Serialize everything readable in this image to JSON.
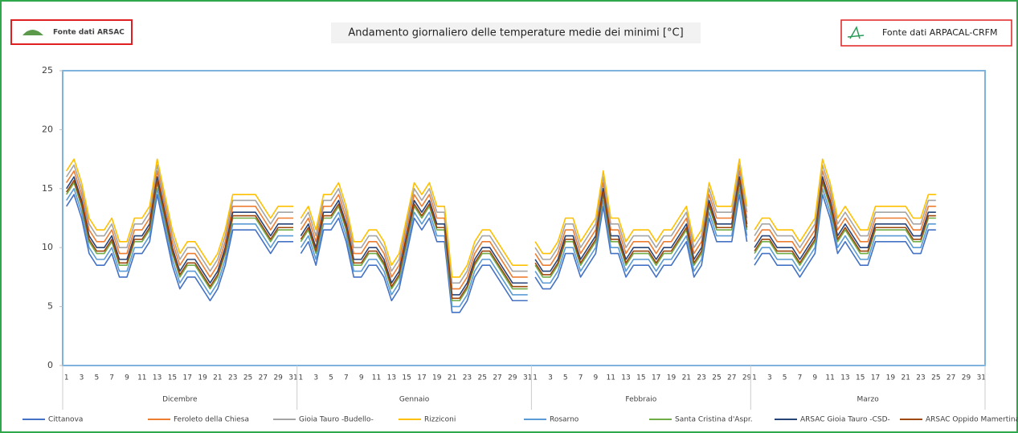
{
  "chart_data": {
    "type": "line",
    "title": "Andamento giornaliero delle temperature medie dei minimi  [°C]",
    "annotations": [
      "Fonte dati ARSAC",
      "Fonte dati ARPACAL-CRFM"
    ],
    "groups": [
      {
        "name": "Dicembre",
        "categories": [
          "1",
          null,
          "3",
          null,
          "5",
          null,
          "7",
          null,
          "9",
          null,
          "11",
          null,
          "13",
          null,
          "15",
          null,
          "17",
          null,
          "19",
          null,
          "21",
          null,
          "23",
          null,
          "25",
          null,
          "27",
          null,
          "29",
          null,
          "31"
        ]
      },
      {
        "name": "Gennaio",
        "categories": [
          "1",
          null,
          "3",
          null,
          "5",
          null,
          "7",
          null,
          "9",
          null,
          "11",
          null,
          "13",
          null,
          "15",
          null,
          "17",
          null,
          "19",
          null,
          "21",
          null,
          "23",
          null,
          "25",
          null,
          "27",
          null,
          "29",
          null,
          "31"
        ]
      },
      {
        "name": "Febbraio",
        "categories": [
          "1",
          null,
          "3",
          null,
          "5",
          null,
          "7",
          null,
          "9",
          null,
          "11",
          null,
          "13",
          null,
          "15",
          null,
          "17",
          null,
          "19",
          null,
          "21",
          null,
          "23",
          null,
          "25",
          null,
          "27",
          null,
          "29"
        ]
      },
      {
        "name": "Marzo",
        "categories": [
          "1",
          null,
          "3",
          null,
          "5",
          null,
          "7",
          null,
          "9",
          null,
          "11",
          null,
          "13",
          null,
          "15",
          null,
          "17",
          null,
          "19",
          null,
          "21",
          null,
          "23",
          null,
          "25",
          null,
          "27",
          null,
          "29",
          null,
          "31"
        ]
      }
    ],
    "ylim": [
      0,
      25
    ],
    "yticks": [
      0,
      5,
      10,
      15,
      20,
      25
    ],
    "grid": false,
    "legend": "bottom",
    "series": [
      {
        "name": "Cittanova",
        "color": "#4472c4",
        "values": [
          13.5,
          14.5,
          12.5,
          9.5,
          8.5,
          8.5,
          9.5,
          7.5,
          7.5,
          9.5,
          9.5,
          10.5,
          14.5,
          11.5,
          8.5,
          6.5,
          7.5,
          7.5,
          6.5,
          5.5,
          6.5,
          8.5,
          11.5,
          11.5,
          11.5,
          11.5,
          10.5,
          9.5,
          10.5,
          10.5,
          10.5,
          9.5,
          10.5,
          8.5,
          11.5,
          11.5,
          12.5,
          10.5,
          7.5,
          7.5,
          8.5,
          8.5,
          7.5,
          5.5,
          6.5,
          9.5,
          12.5,
          11.5,
          12.5,
          10.5,
          10.5,
          4.5,
          4.5,
          5.5,
          7.5,
          8.5,
          8.5,
          7.5,
          6.5,
          5.5,
          5.5,
          5.5,
          7.5,
          6.5,
          6.5,
          7.5,
          9.5,
          9.5,
          7.5,
          8.5,
          9.5,
          13.5,
          9.5,
          9.5,
          7.5,
          8.5,
          8.5,
          8.5,
          7.5,
          8.5,
          8.5,
          9.5,
          10.5,
          7.5,
          8.5,
          12.5,
          10.5,
          10.5,
          10.5,
          14.5,
          10.5,
          8.5,
          9.5,
          9.5,
          8.5,
          8.5,
          8.5,
          7.5,
          8.5,
          9.5,
          14.5,
          12.5,
          9.5,
          10.5,
          9.5,
          8.5,
          8.5,
          10.5,
          10.5,
          10.5,
          10.5,
          10.5,
          9.5,
          9.5,
          11.5,
          11.5,
          null,
          null,
          null,
          null,
          null,
          null
        ]
      },
      {
        "name": "Feroleto della Chiesa",
        "color": "#ed7d31",
        "values": [
          15.5,
          16.5,
          14.5,
          11.5,
          10.5,
          10.5,
          11.5,
          9.5,
          9.5,
          11.5,
          11.5,
          12.5,
          16.5,
          13.5,
          10.5,
          8.5,
          9.5,
          9.5,
          8.5,
          7.5,
          8.5,
          10.5,
          13.5,
          13.5,
          13.5,
          13.5,
          12.5,
          11.5,
          12.5,
          12.5,
          12.5,
          11.5,
          12.5,
          10.5,
          13.5,
          13.5,
          14.5,
          12.5,
          9.5,
          9.5,
          10.5,
          10.5,
          9.5,
          7.5,
          8.5,
          11.5,
          14.5,
          13.5,
          14.5,
          12.5,
          12.5,
          6.5,
          6.5,
          7.5,
          9.5,
          10.5,
          10.5,
          9.5,
          8.5,
          7.5,
          7.5,
          7.5,
          9.5,
          8.5,
          8.5,
          9.5,
          11.5,
          11.5,
          9.5,
          10.5,
          11.5,
          15.5,
          11.5,
          11.5,
          9.5,
          10.5,
          10.5,
          10.5,
          9.5,
          10.5,
          10.5,
          11.5,
          12.5,
          9.5,
          10.5,
          14.5,
          12.5,
          12.5,
          12.5,
          16.5,
          12.5,
          10.5,
          11.5,
          11.5,
          10.5,
          10.5,
          10.5,
          9.5,
          10.5,
          11.5,
          16.5,
          14.5,
          11.5,
          12.5,
          11.5,
          10.5,
          10.5,
          12.5,
          12.5,
          12.5,
          12.5,
          12.5,
          11.5,
          11.5,
          13.5,
          13.5,
          null,
          null,
          null,
          null,
          null,
          null
        ]
      },
      {
        "name": "Gioia Tauro -Budello-",
        "color": "#a5a5a5",
        "values": [
          16,
          17,
          15,
          12,
          11,
          11,
          12,
          10,
          10,
          12,
          12,
          13,
          17,
          14,
          11,
          9,
          10,
          10,
          9,
          8,
          9,
          11,
          14,
          14,
          14,
          14,
          13,
          12,
          13,
          13,
          13,
          12,
          13,
          11,
          14,
          14,
          15,
          13,
          10,
          10,
          11,
          11,
          10,
          8,
          9,
          12,
          15,
          14,
          15,
          13,
          13,
          7,
          7,
          8,
          10,
          11,
          11,
          10,
          9,
          8,
          8,
          8,
          10,
          9,
          9,
          10,
          12,
          12,
          10,
          11,
          12,
          16,
          12,
          12,
          10,
          11,
          11,
          11,
          10,
          11,
          11,
          12,
          13,
          10,
          11,
          15,
          13,
          13,
          13,
          17,
          13,
          11,
          12,
          12,
          11,
          11,
          11,
          10,
          11,
          12,
          17,
          15,
          12,
          13,
          12,
          11,
          11,
          13,
          13,
          13,
          13,
          13,
          12,
          12,
          14,
          14,
          null,
          null,
          null,
          null,
          null,
          null
        ]
      },
      {
        "name": "Rizziconi",
        "color": "#ffc000",
        "values": [
          16.5,
          17.5,
          15.5,
          12.5,
          11.5,
          11.5,
          12.5,
          10.5,
          10.5,
          12.5,
          12.5,
          13.5,
          17.5,
          14.5,
          11.5,
          9.5,
          10.5,
          10.5,
          9.5,
          8.5,
          9.5,
          11.5,
          14.5,
          14.5,
          14.5,
          14.5,
          13.5,
          12.5,
          13.5,
          13.5,
          13.5,
          12.5,
          13.5,
          11.5,
          14.5,
          14.5,
          15.5,
          13.5,
          10.5,
          10.5,
          11.5,
          11.5,
          10.5,
          8.5,
          9.5,
          12.5,
          15.5,
          14.5,
          15.5,
          13.5,
          13.5,
          7.5,
          7.5,
          8.5,
          10.5,
          11.5,
          11.5,
          10.5,
          9.5,
          8.5,
          8.5,
          8.5,
          10.5,
          9.5,
          9.5,
          10.5,
          12.5,
          12.5,
          10.5,
          11.5,
          12.5,
          16.5,
          12.5,
          12.5,
          10.5,
          11.5,
          11.5,
          11.5,
          10.5,
          11.5,
          11.5,
          12.5,
          13.5,
          10.5,
          11.5,
          15.5,
          13.5,
          13.5,
          13.5,
          17.5,
          13.5,
          11.5,
          12.5,
          12.5,
          11.5,
          11.5,
          11.5,
          10.5,
          11.5,
          12.5,
          17.5,
          15.5,
          12.5,
          13.5,
          12.5,
          11.5,
          11.5,
          13.5,
          13.5,
          13.5,
          13.5,
          13.5,
          12.5,
          12.5,
          14.5,
          14.5,
          null,
          null,
          null,
          null,
          null,
          null
        ]
      },
      {
        "name": "Rosarno",
        "color": "#5b9bd5",
        "values": [
          14,
          15,
          13,
          10,
          9,
          9,
          10,
          8,
          8,
          10,
          10,
          11,
          15,
          12,
          9,
          7,
          8,
          8,
          7,
          6,
          7,
          9,
          12,
          12,
          12,
          12,
          11,
          10,
          11,
          11,
          11,
          10,
          11,
          9,
          12,
          12,
          13,
          11,
          8,
          8,
          9,
          9,
          8,
          6,
          7,
          10,
          13,
          12,
          13,
          11,
          11,
          5,
          5,
          6,
          8,
          9,
          9,
          8,
          7,
          6,
          6,
          6,
          8,
          7,
          7,
          8,
          10,
          10,
          8,
          9,
          10,
          14,
          10,
          10,
          8,
          9,
          9,
          9,
          8,
          9,
          9,
          10,
          11,
          8,
          9,
          13,
          11,
          11,
          11,
          15,
          11,
          9,
          10,
          10,
          9,
          9,
          9,
          8,
          9,
          10,
          15,
          13,
          10,
          11,
          10,
          9,
          9,
          11,
          11,
          11,
          11,
          11,
          10,
          10,
          12,
          12,
          null,
          null,
          null,
          null,
          null,
          null
        ]
      },
      {
        "name": "Santa Cristina d'Aspr.",
        "color": "#70ad47",
        "values": [
          14.5,
          15.5,
          13.5,
          10.5,
          9.5,
          9.5,
          10.5,
          8.5,
          8.5,
          10.5,
          10.5,
          11.5,
          15.5,
          12.5,
          9.5,
          7.5,
          8.5,
          8.5,
          7.5,
          6.5,
          7.5,
          9.5,
          12.5,
          12.5,
          12.5,
          12.5,
          11.5,
          10.5,
          11.5,
          11.5,
          11.5,
          10.5,
          11.5,
          9.5,
          12.5,
          12.5,
          13.5,
          11.5,
          8.5,
          8.5,
          9.5,
          9.5,
          8.5,
          6.5,
          7.5,
          10.5,
          13.5,
          12.5,
          13.5,
          11.5,
          11.5,
          5.5,
          5.5,
          6.5,
          8.5,
          9.5,
          9.5,
          8.5,
          7.5,
          6.5,
          6.5,
          6.5,
          8.5,
          7.5,
          7.5,
          8.5,
          10.5,
          10.5,
          8.5,
          9.5,
          10.5,
          14.5,
          10.5,
          10.5,
          8.5,
          9.5,
          9.5,
          9.5,
          8.5,
          9.5,
          9.5,
          10.5,
          11.5,
          8.5,
          9.5,
          13.5,
          11.5,
          11.5,
          11.5,
          15.5,
          11.5,
          9.5,
          10.5,
          10.5,
          9.5,
          9.5,
          9.5,
          8.5,
          9.5,
          10.5,
          15.5,
          13.5,
          10.5,
          11.5,
          10.5,
          9.5,
          9.5,
          11.5,
          11.5,
          11.5,
          11.5,
          11.5,
          10.5,
          10.5,
          12.5,
          12.5,
          null,
          null,
          null,
          null,
          null,
          null
        ]
      },
      {
        "name": "ARSAC Gioia Tauro -CSD-",
        "color": "#264478",
        "values": [
          15,
          16,
          14,
          11,
          10,
          10,
          11,
          9,
          9,
          11,
          11,
          12,
          16,
          13,
          10,
          8,
          9,
          9,
          8,
          7,
          8,
          10,
          13,
          13,
          13,
          13,
          12,
          11,
          12,
          12,
          12,
          11,
          12,
          10,
          13,
          13,
          14,
          12,
          9,
          9,
          10,
          10,
          9,
          7,
          8,
          11,
          14,
          13,
          14,
          12,
          12,
          6,
          6,
          7,
          9,
          10,
          10,
          9,
          8,
          7,
          7,
          7,
          9,
          8,
          8,
          9,
          11,
          11,
          9,
          10,
          11,
          15,
          11,
          11,
          9,
          10,
          10,
          10,
          9,
          10,
          10,
          11,
          12,
          9,
          10,
          14,
          12,
          12,
          12,
          16,
          12,
          10,
          11,
          11,
          10,
          10,
          10,
          9,
          10,
          11,
          16,
          14,
          11,
          12,
          11,
          10,
          10,
          12,
          12,
          12,
          12,
          12,
          11,
          11,
          13,
          13,
          null,
          null,
          null,
          null,
          null,
          null
        ]
      },
      {
        "name": "ARSAC Oppido Mamertina",
        "color": "#9e480e",
        "values": [
          14.7,
          15.7,
          13.7,
          10.7,
          9.7,
          9.7,
          10.7,
          8.7,
          8.7,
          10.7,
          10.7,
          11.7,
          15.7,
          12.7,
          9.7,
          7.7,
          8.7,
          8.7,
          7.7,
          6.7,
          7.7,
          9.7,
          12.7,
          12.7,
          12.7,
          12.7,
          11.7,
          10.7,
          11.7,
          11.7,
          11.7,
          10.7,
          11.7,
          9.7,
          12.7,
          12.7,
          13.7,
          11.7,
          8.7,
          8.7,
          9.7,
          9.7,
          8.7,
          6.7,
          7.7,
          10.7,
          13.7,
          12.7,
          13.7,
          11.7,
          11.7,
          5.7,
          5.7,
          6.7,
          8.7,
          9.7,
          9.7,
          8.7,
          7.7,
          6.7,
          6.7,
          6.7,
          8.7,
          7.7,
          7.7,
          8.7,
          10.7,
          10.7,
          8.7,
          9.7,
          10.7,
          14.7,
          10.7,
          10.7,
          8.7,
          9.7,
          9.7,
          9.7,
          8.7,
          9.7,
          9.7,
          10.7,
          11.7,
          8.7,
          9.7,
          13.7,
          11.7,
          11.7,
          11.7,
          15.7,
          11.7,
          9.7,
          10.7,
          10.7,
          9.7,
          9.7,
          9.7,
          8.7,
          9.7,
          10.7,
          15.7,
          13.7,
          10.7,
          11.7,
          10.7,
          9.7,
          9.7,
          11.7,
          11.7,
          11.7,
          11.7,
          11.7,
          10.7,
          10.7,
          12.7,
          12.7,
          null,
          null,
          null,
          null,
          null,
          null
        ]
      }
    ]
  }
}
